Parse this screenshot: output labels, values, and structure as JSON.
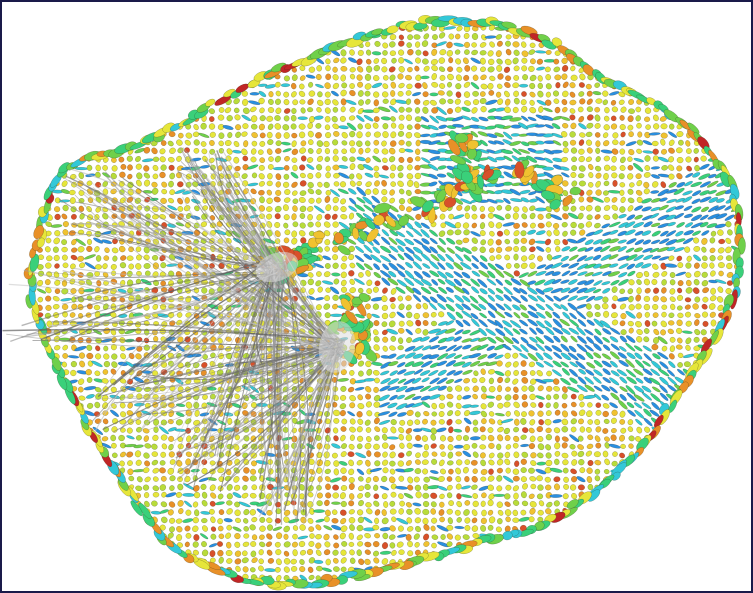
{
  "scene": {
    "colors": {
      "background": "#ffffff",
      "frame_border": "#1a1a4a",
      "glyph_palette": [
        "#2a8fe0",
        "#33c8d8",
        "#3ad07a",
        "#6fd04a",
        "#b8dc3a",
        "#e6e63a",
        "#f0c230",
        "#e89028",
        "#d8502a",
        "#c02626"
      ],
      "tract_color": "#9a9a9a"
    }
  }
}
